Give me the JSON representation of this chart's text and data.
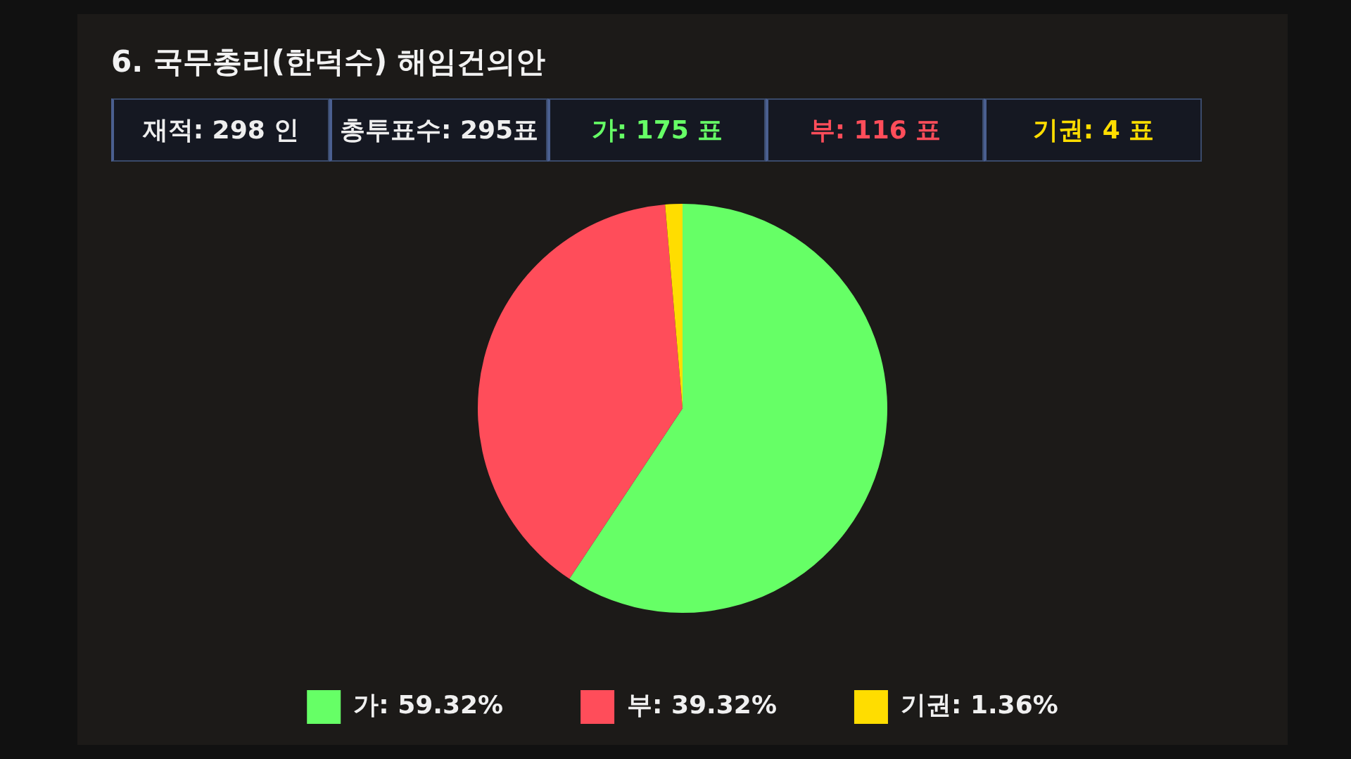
{
  "chart_data": {
    "type": "pie",
    "title": "6. 국무총리(한덕수) 해임건의안",
    "categories": [
      "가",
      "부",
      "기권"
    ],
    "values": [
      59.32,
      39.32,
      1.36
    ],
    "value_labels": [
      "59.32%",
      "39.32%",
      "1.36%"
    ],
    "colors": [
      "#66ff66",
      "#ff4d5a",
      "#ffdd00"
    ],
    "legend": "bottom",
    "annotations": [
      "재적: 298 인",
      "총투표수: 295표",
      "가: 175 표",
      "부: 116 표",
      "기권:  4 표"
    ]
  }
}
